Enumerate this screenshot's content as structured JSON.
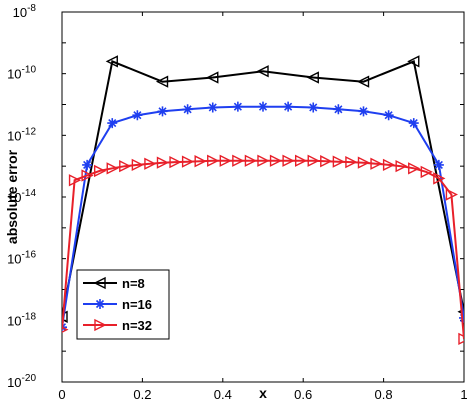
{
  "chart_data": {
    "type": "line",
    "xlabel": "x",
    "ylabel": "absolute error",
    "xlim": [
      0,
      1
    ],
    "ylim": [
      1e-20,
      1e-08
    ],
    "yscale": "log",
    "grid": false,
    "legend_position": "bottom-left",
    "x_ticks": [
      "0",
      "0.2",
      "0.4",
      "0.6",
      "0.8",
      "1"
    ],
    "y_ticks": [
      {
        "base": "10",
        "exp": "-20"
      },
      {
        "base": "10",
        "exp": "-18"
      },
      {
        "base": "10",
        "exp": "-16"
      },
      {
        "base": "10",
        "exp": "-14"
      },
      {
        "base": "10",
        "exp": "-12"
      },
      {
        "base": "10",
        "exp": "-10"
      },
      {
        "base": "10",
        "exp": "-8"
      }
    ],
    "series": [
      {
        "name": "n=8",
        "color": "#000000",
        "marker": "left-triangle",
        "x": [
          0,
          0.125,
          0.25,
          0.375,
          0.5,
          0.625,
          0.75,
          0.875,
          1
        ],
        "y": [
          1.3e-18,
          2.5e-10,
          5.5e-11,
          7.5e-11,
          1.2e-10,
          7.5e-11,
          5.5e-11,
          2.5e-10,
          1.9e-18
        ]
      },
      {
        "name": "n=16",
        "color": "#1f3ff0",
        "marker": "asterisk",
        "x": [
          0,
          0.0625,
          0.125,
          0.1875,
          0.25,
          0.3125,
          0.375,
          0.4375,
          0.5,
          0.5625,
          0.625,
          0.6875,
          0.75,
          0.8125,
          0.875,
          0.9375,
          1
        ],
        "y": [
          6e-19,
          1.1e-13,
          2.5e-12,
          4.5e-12,
          6e-12,
          7e-12,
          8e-12,
          8.5e-12,
          8.5e-12,
          8.5e-12,
          8e-12,
          7e-12,
          6e-12,
          4.5e-12,
          2.5e-12,
          1.1e-13,
          1.2e-18
        ]
      },
      {
        "name": "n=32",
        "color": "#e8202a",
        "marker": "right-triangle",
        "x": [
          0,
          0.03125,
          0.0625,
          0.09375,
          0.125,
          0.15625,
          0.1875,
          0.21875,
          0.25,
          0.28125,
          0.3125,
          0.34375,
          0.375,
          0.40625,
          0.4375,
          0.46875,
          0.5,
          0.53125,
          0.5625,
          0.59375,
          0.625,
          0.65625,
          0.6875,
          0.71875,
          0.75,
          0.78125,
          0.8125,
          0.84375,
          0.875,
          0.90625,
          0.9375,
          0.96875,
          1
        ],
        "y": [
          5e-19,
          3.5e-14,
          5e-14,
          7e-14,
          8.5e-14,
          1e-13,
          1.1e-13,
          1.2e-13,
          1.3e-13,
          1.35e-13,
          1.4e-13,
          1.45e-13,
          1.5e-13,
          1.5e-13,
          1.5e-13,
          1.5e-13,
          1.5e-13,
          1.5e-13,
          1.5e-13,
          1.5e-13,
          1.5e-13,
          1.45e-13,
          1.4e-13,
          1.35e-13,
          1.3e-13,
          1.2e-13,
          1.1e-13,
          1e-13,
          8.5e-14,
          6.5e-14,
          4e-14,
          1.2e-14,
          2.5e-19
        ]
      }
    ]
  }
}
